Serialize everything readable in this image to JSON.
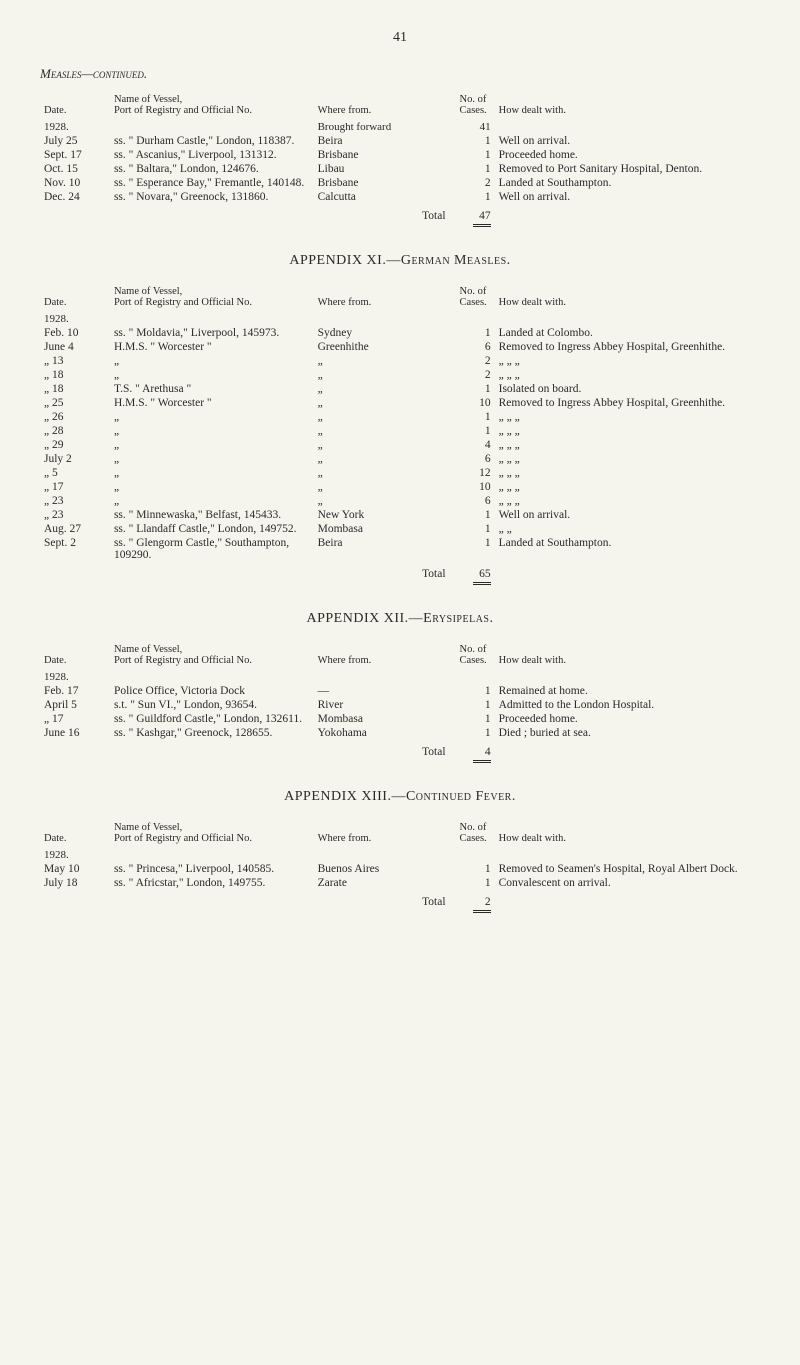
{
  "page_number": "41",
  "section1": {
    "title": "Measles—continued.",
    "headers": {
      "date": "Date.",
      "vessel": "Name of Vessel,\nPort of Registry and Official No.",
      "where": "Where from.",
      "cases": "No. of Cases.",
      "dealt": "How dealt with."
    },
    "year": "1928.",
    "brought_forward": {
      "label": "Brought forward",
      "value": "41"
    },
    "rows": [
      {
        "date": "July 25",
        "vessel": "ss. \" Durham Castle,\" London, 118387.",
        "where": "Beira",
        "cases": "1",
        "dealt": "Well on arrival."
      },
      {
        "date": "Sept. 17",
        "vessel": "ss. \" Ascanius,\" Liverpool, 131312.",
        "where": "Brisbane",
        "cases": "1",
        "dealt": "Proceeded home."
      },
      {
        "date": "Oct. 15",
        "vessel": "ss. \" Baltara,\" London, 124676.",
        "where": "Libau",
        "cases": "1",
        "dealt": "Removed to Port Sanitary Hospital, Denton."
      },
      {
        "date": "Nov. 10",
        "vessel": "ss. \" Esperance Bay,\" Fremantle, 140148.",
        "where": "Brisbane",
        "cases": "2",
        "dealt": "Landed at Southampton."
      },
      {
        "date": "Dec. 24",
        "vessel": "ss. \" Novara,\" Greenock, 131860.",
        "where": "Calcutta",
        "cases": "1",
        "dealt": "Well on arrival."
      }
    ],
    "total": {
      "label": "Total",
      "value": "47"
    }
  },
  "section2": {
    "title": "APPENDIX XI.—German Measles.",
    "headers": {
      "date": "Date.",
      "vessel": "Name of Vessel,\nPort of Registry and Official No.",
      "where": "Where from.",
      "cases": "No. of Cases.",
      "dealt": "How dealt with."
    },
    "year": "1928.",
    "rows": [
      {
        "date": "Feb. 10",
        "vessel": "ss. \" Moldavia,\" Liverpool, 145973.",
        "where": "Sydney",
        "cases": "1",
        "dealt": "Landed at Colombo."
      },
      {
        "date": "June 4",
        "vessel": "H.M.S. \" Worcester \"",
        "where": "Greenhithe",
        "cases": "6",
        "dealt": "Removed to Ingress Abbey Hospital, Greenhithe."
      },
      {
        "date": "„ 13",
        "vessel": "„",
        "where": "„",
        "cases": "2",
        "dealt": "„        „        „"
      },
      {
        "date": "„ 18",
        "vessel": "„",
        "where": "„",
        "cases": "2",
        "dealt": "„        „        „"
      },
      {
        "date": "„ 18",
        "vessel": "T.S. \" Arethusa \"",
        "where": "„",
        "cases": "1",
        "dealt": "Isolated on board."
      },
      {
        "date": "„ 25",
        "vessel": "H.M.S. \" Worcester \"",
        "where": "„",
        "cases": "10",
        "dealt": "Removed to Ingress Abbey Hospital, Greenhithe."
      },
      {
        "date": "„ 26",
        "vessel": "„",
        "where": "„",
        "cases": "1",
        "dealt": "„        „        „"
      },
      {
        "date": "„ 28",
        "vessel": "„",
        "where": "„",
        "cases": "1",
        "dealt": "„        „        „"
      },
      {
        "date": "„ 29",
        "vessel": "„",
        "where": "„",
        "cases": "4",
        "dealt": "„        „        „"
      },
      {
        "date": "July 2",
        "vessel": "„",
        "where": "„",
        "cases": "6",
        "dealt": "„        „        „"
      },
      {
        "date": "„ 5",
        "vessel": "„",
        "where": "„",
        "cases": "12",
        "dealt": "„        „        „"
      },
      {
        "date": "„ 17",
        "vessel": "„",
        "where": "„",
        "cases": "10",
        "dealt": "„        „        „"
      },
      {
        "date": "„ 23",
        "vessel": "„",
        "where": "„",
        "cases": "6",
        "dealt": "„        „        „"
      },
      {
        "date": "„ 23",
        "vessel": "ss. \" Minnewaska,\" Belfast, 145433.",
        "where": "New York",
        "cases": "1",
        "dealt": "Well on arrival."
      },
      {
        "date": "Aug. 27",
        "vessel": "ss. \" Llandaff Castle,\" London, 149752.",
        "where": "Mombasa",
        "cases": "1",
        "dealt": "„        „"
      },
      {
        "date": "Sept. 2",
        "vessel": "ss. \" Glengorm Castle,\" Southampton, 109290.",
        "where": "Beira",
        "cases": "1",
        "dealt": "Landed at Southampton."
      }
    ],
    "total": {
      "label": "Total",
      "value": "65"
    }
  },
  "section3": {
    "title": "APPENDIX XII.—Erysipelas.",
    "headers": {
      "date": "Date.",
      "vessel": "Name of Vessel,\nPort of Registry and Official No.",
      "where": "Where from.",
      "cases": "No. of Cases.",
      "dealt": "How dealt with."
    },
    "year": "1928.",
    "rows": [
      {
        "date": "Feb. 17",
        "vessel": "Police Office, Victoria Dock",
        "where": "—",
        "cases": "1",
        "dealt": "Remained at home."
      },
      {
        "date": "April 5",
        "vessel": "s.t. \" Sun VI.,\" London, 93654.",
        "where": "River",
        "cases": "1",
        "dealt": "Admitted to the London Hospital."
      },
      {
        "date": "„ 17",
        "vessel": "ss. \" Guildford Castle,\" London, 132611.",
        "where": "Mombasa",
        "cases": "1",
        "dealt": "Proceeded home."
      },
      {
        "date": "June 16",
        "vessel": "ss. \" Kashgar,\" Greenock, 128655.",
        "where": "Yokohama",
        "cases": "1",
        "dealt": "Died ; buried at sea."
      }
    ],
    "total": {
      "label": "Total",
      "value": "4"
    }
  },
  "section4": {
    "title": "APPENDIX XIII.—Continued Fever.",
    "headers": {
      "date": "Date.",
      "vessel": "Name of Vessel,\nPort of Registry and Official No.",
      "where": "Where from.",
      "cases": "No. of Cases.",
      "dealt": "How dealt with."
    },
    "year": "1928.",
    "rows": [
      {
        "date": "May 10",
        "vessel": "ss. \" Princesa,\" Liverpool, 140585.",
        "where": "Buenos Aires",
        "cases": "1",
        "dealt": "Removed to Seamen's Hospital, Royal Albert Dock."
      },
      {
        "date": "July 18",
        "vessel": "ss. \" Africstar,\" London, 149755.",
        "where": "Zarate",
        "cases": "1",
        "dealt": "Convalescent on arrival."
      }
    ],
    "total": {
      "label": "Total",
      "value": "2"
    }
  }
}
